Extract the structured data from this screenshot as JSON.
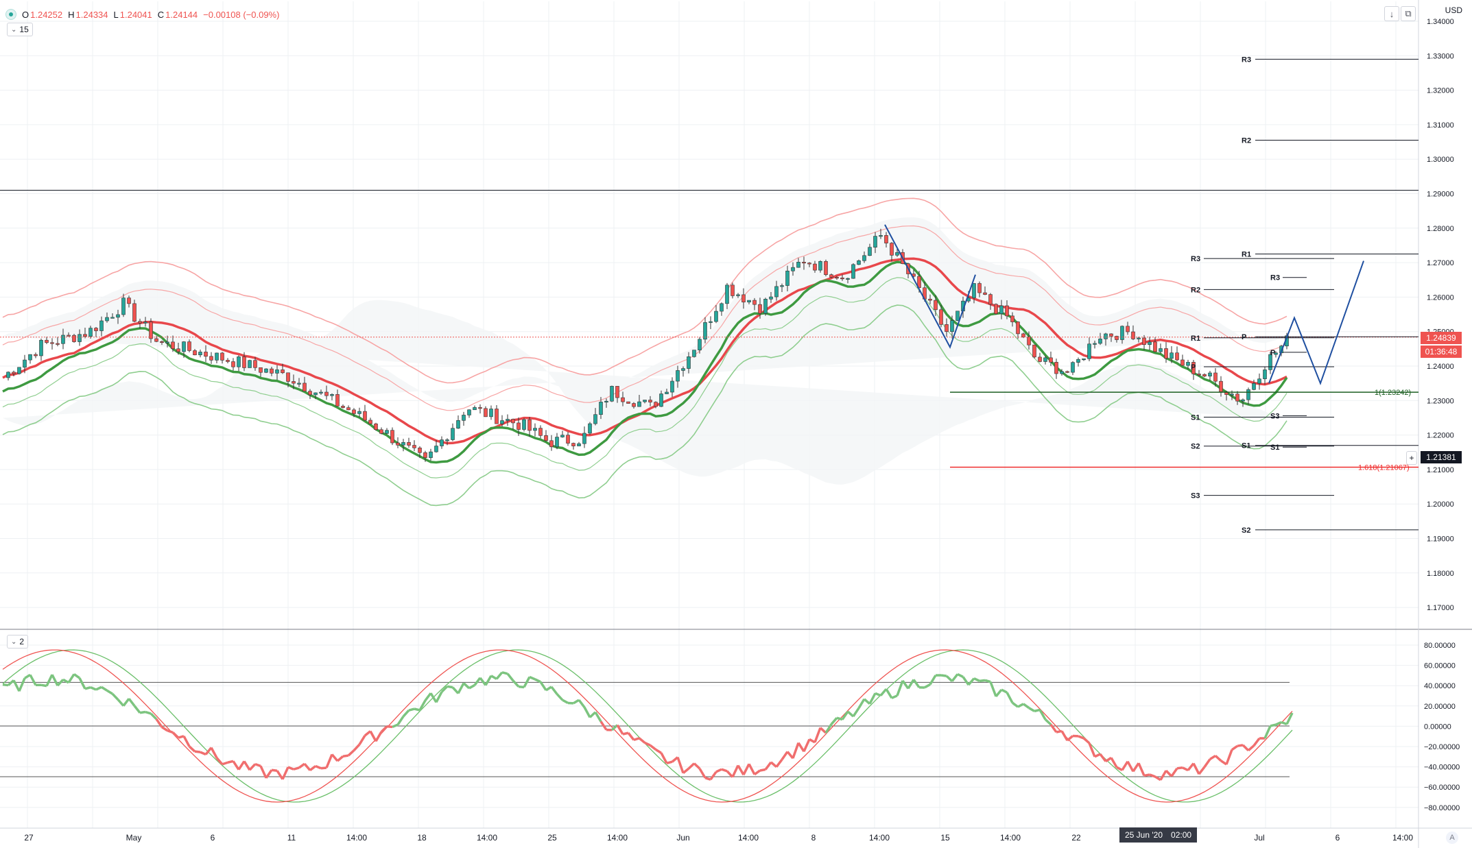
{
  "header": {
    "ohlc": {
      "open_label": "O",
      "open": "1.24252",
      "high_label": "H",
      "high": "1.24334",
      "low_label": "L",
      "low": "1.24041",
      "close_label": "C",
      "close": "1.24144",
      "change": "−0.00108 (−0.09%)"
    },
    "main_indicator_value": "15",
    "sub_indicator_value": "2",
    "currency": "USD"
  },
  "toolbar": {
    "arrow_icon": "arrow-down-icon",
    "restore_icon": "restore-icon",
    "auto_label": "A"
  },
  "price_axis": {
    "ticks": [
      "1.34000",
      "1.33000",
      "1.32000",
      "1.31000",
      "1.30000",
      "1.29000",
      "1.28000",
      "1.27000",
      "1.26000",
      "1.25000",
      "1.24000",
      "1.23000",
      "1.22000",
      "1.21000",
      "1.20000",
      "1.19000",
      "1.18000",
      "1.17000"
    ],
    "last_price": "1.24839",
    "countdown": "01:36:48",
    "crosshair_price": "1.21381"
  },
  "osc_axis": {
    "ticks": [
      "80.00000",
      "60.00000",
      "40.00000",
      "20.00000",
      "0.00000",
      "−20.00000",
      "−40.00000",
      "−60.00000",
      "−80.00000"
    ]
  },
  "time_axis": {
    "labels": [
      "27",
      "May",
      "6",
      "11",
      "14:00",
      "18",
      "14:00",
      "25",
      "14:00",
      "Jun",
      "14:00",
      "8",
      "14:00",
      "15",
      "14:00",
      "22",
      "25 Jun '20",
      "02:00",
      "Jul",
      "6",
      "14:00"
    ]
  },
  "drawings": {
    "pivot_labels_a": [
      "R3",
      "R2",
      "R1",
      "P",
      "S1",
      "S2",
      "S3"
    ],
    "pivot_labels_b": [
      "R1",
      "P",
      "S1",
      "S2",
      "R3",
      "S3"
    ],
    "pivot_labels_c": [
      "R3",
      "P",
      "S3",
      "S1"
    ],
    "fib_1": "1(1.23242)",
    "fib_1618": "1.618(1.21067)"
  },
  "colors": {
    "up": "#26a69a",
    "down": "#ef5350",
    "ma_red": "#e8474b",
    "ma_green": "#3e9a41",
    "band_red": "#f7a5a5",
    "band_green": "#8fce8f",
    "projection": "#1f4fa0",
    "grid": "#eef0f3"
  },
  "chart_data": {
    "type": "candlestick",
    "symbol_currency": "USD",
    "price_range": [
      1.165,
      1.345
    ],
    "last_price": 1.24839,
    "horizontal_levels": [
      {
        "label": "R3",
        "value": 1.329
      },
      {
        "label": "R2",
        "value": 1.3055
      },
      {
        "label": "R1",
        "value": 1.2725
      },
      {
        "label": "P",
        "value": 1.2485
      },
      {
        "label": "S1",
        "value": 1.217
      },
      {
        "label": "S2",
        "value": 1.1925
      },
      {
        "label": "1",
        "value": 1.23242
      },
      {
        "label": "1.618",
        "value": 1.21067
      },
      {
        "label": "",
        "value": 1.291
      }
    ],
    "oscillator_range": [
      -85,
      85
    ],
    "oscillator_levels": [
      43,
      0,
      -50
    ]
  }
}
